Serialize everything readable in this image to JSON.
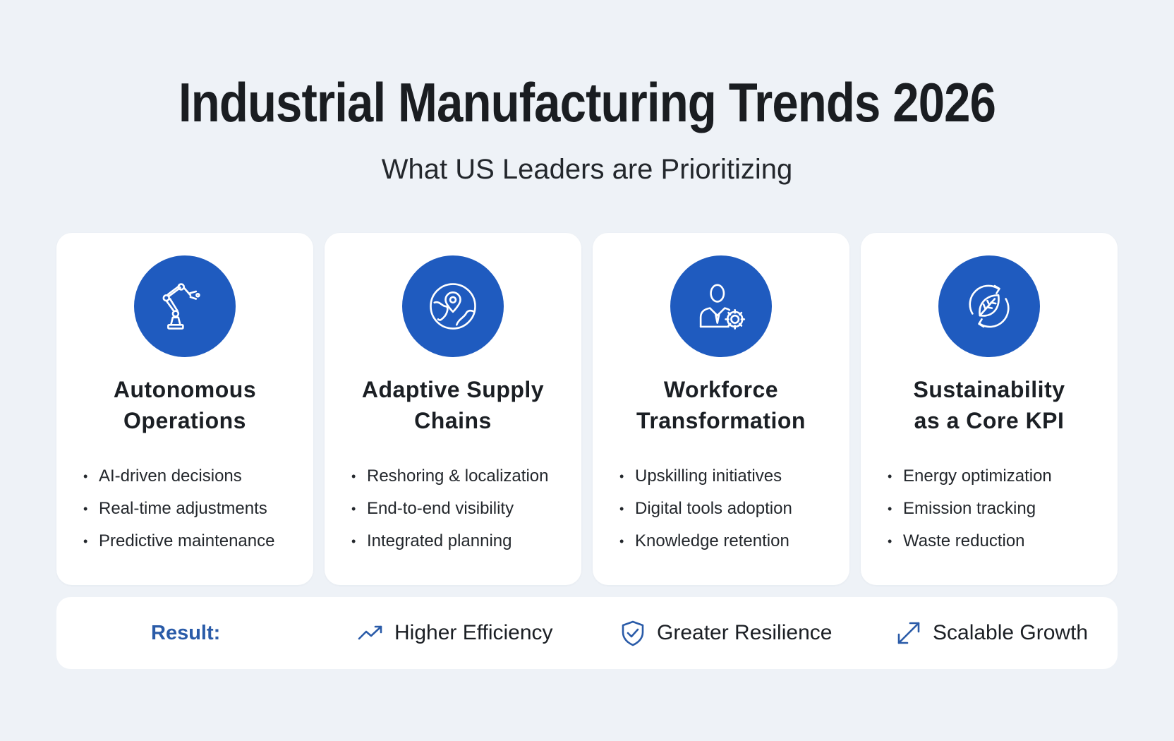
{
  "header": {
    "title": "Industrial Manufacturing Trends 2026",
    "subtitle": "What US Leaders are Prioritizing"
  },
  "colors": {
    "accent": "#1f5bbf",
    "result_label": "#2a5ba8",
    "background": "#eef2f7",
    "card": "#ffffff"
  },
  "cards": [
    {
      "icon": "robotic-arm-icon",
      "title_line1": "Autonomous",
      "title_line2": "Operations",
      "bullets": [
        "AI-driven decisions",
        "Real-time adjustments",
        "Predictive maintenance"
      ]
    },
    {
      "icon": "globe-location-icon",
      "title_line1": "Adaptive Supply",
      "title_line2": "Chains",
      "bullets": [
        "Reshoring & localization",
        "End-to-end visibility",
        "Integrated planning"
      ]
    },
    {
      "icon": "person-gear-icon",
      "title_line1": "Workforce",
      "title_line2": "Transformation",
      "bullets": [
        "Upskilling initiatives",
        "Digital tools adoption",
        "Knowledge retention"
      ]
    },
    {
      "icon": "leaf-cycle-icon",
      "title_line1": "Sustainability",
      "title_line2": "as a Core KPI",
      "bullets": [
        "Energy optimization",
        "Emission tracking",
        "Waste reduction"
      ]
    }
  ],
  "result": {
    "label": "Result:",
    "items": [
      {
        "icon": "trending-up-icon",
        "text": "Higher Efficiency"
      },
      {
        "icon": "shield-check-icon",
        "text": "Greater Resilience"
      },
      {
        "icon": "expand-arrows-icon",
        "text": "Scalable Growth"
      }
    ]
  }
}
